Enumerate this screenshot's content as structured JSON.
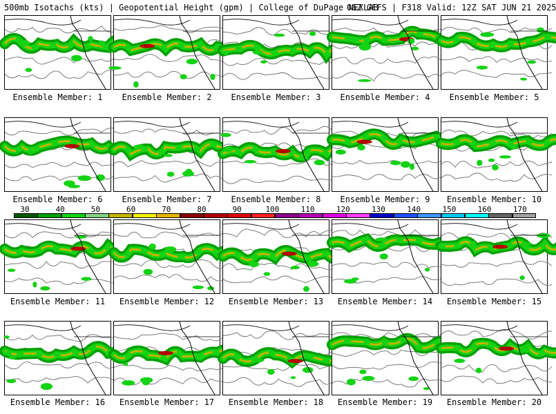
{
  "header": {
    "left": "500mb Isotachs (kts) | Geopotential Height (gpm) | College of DuPage NEXLAB",
    "right": "06Z GEFS | F318 Valid: 12Z SAT JUN 21 2025"
  },
  "colors": {
    "land_line": "#000000",
    "contour": "#7a7a7a",
    "scale": [
      "#005800",
      "#00a000",
      "#14d214",
      "#84d284",
      "#c4b400",
      "#f0f000",
      "#e6b400",
      "#8c0000",
      "#b40000",
      "#e00000",
      "#ff2020",
      "#8c008c",
      "#b400b4",
      "#e000e0",
      "#ff3cff",
      "#0000c8",
      "#1e50ff",
      "#3c96ff",
      "#00c8ff",
      "#00ffff",
      "#646464",
      "#a0a0a0"
    ]
  },
  "colorbar": {
    "ticks": [
      "30",
      "40",
      "50",
      "60",
      "70",
      "80",
      "90",
      "100",
      "110",
      "120",
      "130",
      "140",
      "150",
      "160",
      "170"
    ]
  },
  "members": [
    {
      "label": "Ensemble Member: 1"
    },
    {
      "label": "Ensemble Member: 2"
    },
    {
      "label": "Ensemble Member: 3"
    },
    {
      "label": "Ensemble Member: 4"
    },
    {
      "label": "Ensemble Member: 5"
    },
    {
      "label": "Ensemble Member: 6"
    },
    {
      "label": "Ensemble Member: 7"
    },
    {
      "label": "Ensemble Member: 8"
    },
    {
      "label": "Ensemble Member: 9"
    },
    {
      "label": "Ensemble Member: 10"
    },
    {
      "label": "Ensemble Member: 11"
    },
    {
      "label": "Ensemble Member: 12"
    },
    {
      "label": "Ensemble Member: 13"
    },
    {
      "label": "Ensemble Member: 14"
    },
    {
      "label": "Ensemble Member: 15"
    },
    {
      "label": "Ensemble Member: 16"
    },
    {
      "label": "Ensemble Member: 17"
    },
    {
      "label": "Ensemble Member: 18"
    },
    {
      "label": "Ensemble Member: 19"
    },
    {
      "label": "Ensemble Member: 20"
    }
  ]
}
